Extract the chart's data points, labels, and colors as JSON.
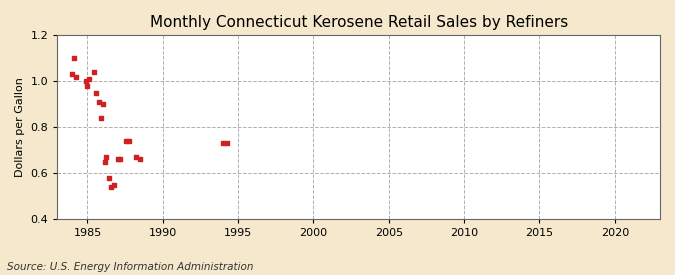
{
  "title": "Monthly Connecticut Kerosene Retail Sales by Refiners",
  "ylabel": "Dollars per Gallon",
  "source": "Source: U.S. Energy Information Administration",
  "figure_background_color": "#f5e8cc",
  "plot_background_color": "#ffffff",
  "marker_color": "#cc2222",
  "xlim": [
    1983,
    2023
  ],
  "ylim": [
    0.4,
    1.2
  ],
  "xticks": [
    1985,
    1990,
    1995,
    2000,
    2005,
    2010,
    2015,
    2020
  ],
  "yticks": [
    0.4,
    0.6,
    0.8,
    1.0,
    1.2
  ],
  "data_x": [
    1984.0,
    1984.08,
    1984.25,
    1984.92,
    1985.0,
    1985.08,
    1985.42,
    1985.58,
    1985.75,
    1985.92,
    1986.0,
    1986.17,
    1986.25,
    1986.42,
    1986.58,
    1986.75,
    1987.0,
    1987.17,
    1987.58,
    1987.75,
    1988.25,
    1988.5,
    1994.0,
    1994.25
  ],
  "data_y": [
    1.03,
    1.1,
    1.02,
    1.0,
    0.98,
    1.01,
    1.04,
    0.95,
    0.91,
    0.84,
    0.9,
    0.65,
    0.67,
    0.58,
    0.54,
    0.55,
    0.66,
    0.66,
    0.74,
    0.74,
    0.67,
    0.66,
    0.73,
    0.73
  ],
  "title_fontsize": 11,
  "ylabel_fontsize": 8,
  "tick_fontsize": 8,
  "source_fontsize": 7.5,
  "marker_size": 12
}
